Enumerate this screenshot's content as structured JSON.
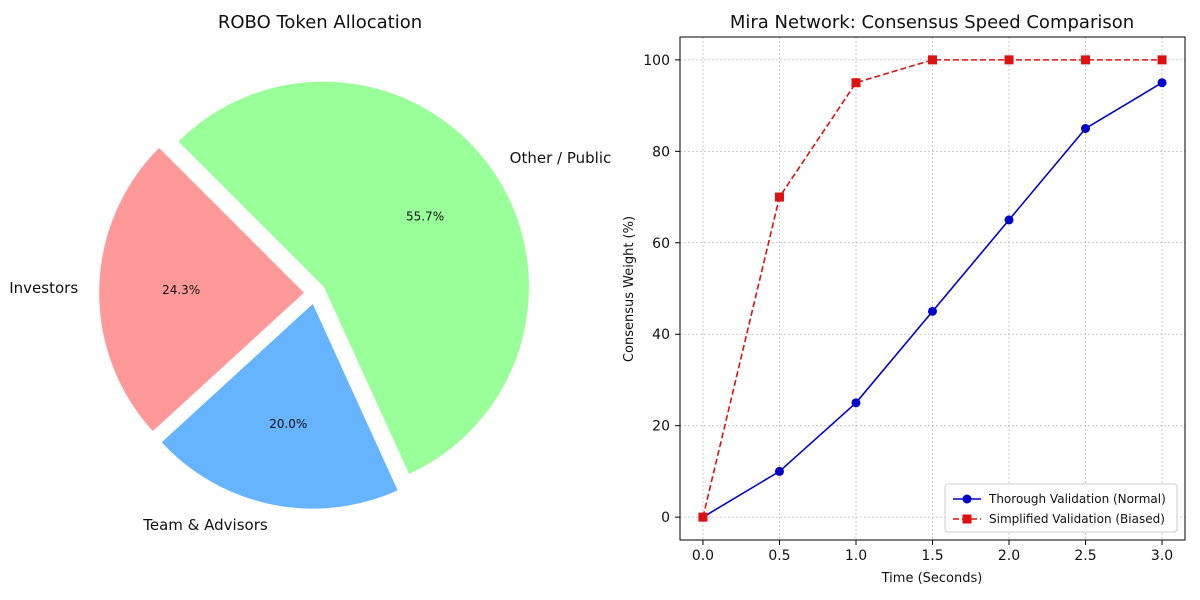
{
  "chart_data": [
    {
      "type": "pie",
      "title": "ROBO Token Allocation",
      "slices": [
        {
          "label": "Investors",
          "value": 24.3,
          "pct_label": "24.3%",
          "color": "#ff9999"
        },
        {
          "label": "Team & Advisors",
          "value": 20.0,
          "pct_label": "20.0%",
          "color": "#66b3ff"
        },
        {
          "label": "Other / Public",
          "value": 55.7,
          "pct_label": "55.7%",
          "color": "#99ff99"
        }
      ],
      "exploded": true
    },
    {
      "type": "line",
      "title": "Mira Network: Consensus Speed Comparison",
      "xlabel": "Time (Seconds)",
      "ylabel": "Consensus Weight (%)",
      "x": [
        0.0,
        0.5,
        1.0,
        1.5,
        2.0,
        2.5,
        3.0
      ],
      "xticks": [
        "0.0",
        "0.5",
        "1.0",
        "1.5",
        "2.0",
        "2.5",
        "3.0"
      ],
      "yticks": [
        "0",
        "20",
        "40",
        "60",
        "80",
        "100"
      ],
      "xlim": [
        -0.15,
        3.15
      ],
      "ylim": [
        -5,
        105
      ],
      "grid": true,
      "legend_position": "lower-right",
      "series": [
        {
          "name": "Thorough Validation (Normal)",
          "values": [
            0,
            10,
            25,
            45,
            65,
            85,
            95
          ],
          "color": "#0000cc",
          "marker": "circle",
          "linestyle": "solid"
        },
        {
          "name": "Simplified Validation (Biased)",
          "values": [
            0,
            70,
            95,
            100,
            100,
            100,
            100
          ],
          "color": "#dd1111",
          "marker": "square",
          "linestyle": "dashed"
        }
      ]
    }
  ]
}
